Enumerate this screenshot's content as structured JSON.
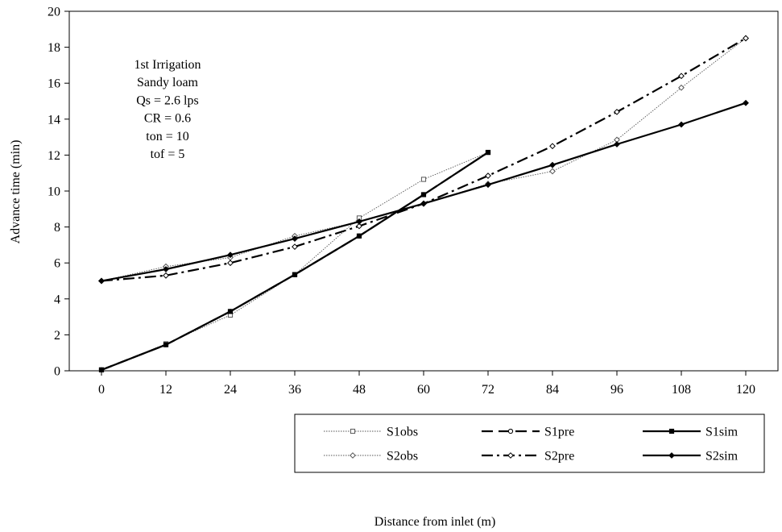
{
  "chart_data": {
    "type": "line",
    "xlabel": "Distance from inlet (m)",
    "ylabel": "Advance time (min)",
    "xlim": [
      -6,
      126
    ],
    "ylim": [
      0,
      20
    ],
    "x_ticks": [
      0,
      12,
      24,
      36,
      48,
      60,
      72,
      84,
      96,
      108,
      120
    ],
    "y_ticks": [
      0,
      2,
      4,
      6,
      8,
      10,
      12,
      14,
      16,
      18,
      20
    ],
    "grid": false,
    "legend_position": "bottom-right",
    "annotation": [
      "1st Irrigation",
      "Sandy loam",
      "Qs = 2.6 lps",
      "CR =  0.6",
      "ton = 10",
      "tof = 5"
    ],
    "series": [
      {
        "name": "S1obs",
        "style": "dotted-thin",
        "marker": "square-open",
        "color": "#555555",
        "x": [
          0,
          12,
          24,
          36,
          48,
          60,
          72
        ],
        "y": [
          0.05,
          1.5,
          3.1,
          5.35,
          8.5,
          10.65,
          12.15
        ]
      },
      {
        "name": "S1pre",
        "style": "dash",
        "marker": "circle-open",
        "color": "#000000",
        "x": [
          0,
          12,
          24,
          36,
          48,
          60,
          72
        ],
        "y": [
          0.05,
          1.45,
          3.3,
          5.35,
          7.5,
          9.8,
          12.15
        ]
      },
      {
        "name": "S1sim",
        "style": "solid-thick",
        "marker": "square-filled",
        "color": "#000000",
        "x": [
          0,
          12,
          24,
          36,
          48,
          60,
          72
        ],
        "y": [
          0.05,
          1.45,
          3.3,
          5.35,
          7.5,
          9.8,
          12.15
        ]
      },
      {
        "name": "S2obs",
        "style": "dotted-thin",
        "marker": "diamond-open",
        "color": "#555555",
        "x": [
          0,
          12,
          24,
          36,
          48,
          60,
          72,
          84,
          96,
          108,
          120
        ],
        "y": [
          5.0,
          5.8,
          6.3,
          7.5,
          8.3,
          9.3,
          10.4,
          11.1,
          12.85,
          15.75,
          18.5
        ]
      },
      {
        "name": "S2pre",
        "style": "dash-dot",
        "marker": "diamond-open",
        "color": "#000000",
        "x": [
          0,
          12,
          24,
          36,
          48,
          60,
          72,
          84,
          96,
          108,
          120
        ],
        "y": [
          5.0,
          5.3,
          6.0,
          6.9,
          8.05,
          9.3,
          10.85,
          12.5,
          14.4,
          16.4,
          18.5
        ]
      },
      {
        "name": "S2sim",
        "style": "solid-thick",
        "marker": "diamond-filled",
        "color": "#000000",
        "x": [
          0,
          12,
          24,
          36,
          48,
          60,
          72,
          84,
          96,
          108,
          120
        ],
        "y": [
          5.0,
          5.65,
          6.45,
          7.35,
          8.3,
          9.3,
          10.35,
          11.45,
          12.6,
          13.7,
          14.9
        ]
      }
    ]
  }
}
